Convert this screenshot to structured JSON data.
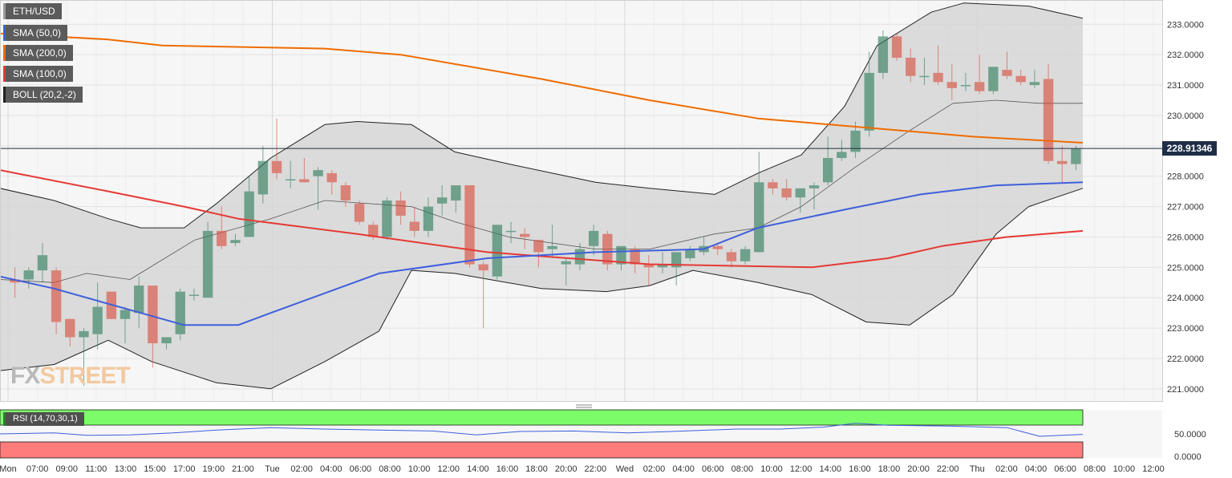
{
  "legend": {
    "symbol": "ETH/USD",
    "sma50": "SMA (50,0)",
    "sma200": "SMA (200,0)",
    "sma100": "SMA (100,0)",
    "boll": "BOLL (20,2,-2)",
    "colors": {
      "symbol": "#999999",
      "sma50": "#3f5fdc",
      "sma200": "#ef6c00",
      "sma100": "#e53935",
      "boll": "#222222"
    }
  },
  "watermark": {
    "part1": "FX",
    "part2": "STREET"
  },
  "last_price": "228.91346",
  "rsi": {
    "label": "RSI (14,70,30,1)",
    "ticks": [
      "50.0000",
      "0.0000"
    ]
  },
  "chart_data": {
    "type": "candlestick",
    "symbol": "ETH/USD",
    "y_ticks": [
      "221.0000",
      "222.0000",
      "223.0000",
      "224.0000",
      "225.0000",
      "226.0000",
      "227.0000",
      "228.0000",
      "229.0000",
      "230.0000",
      "231.0000",
      "232.0000",
      "233.0000"
    ],
    "ylim": [
      220.6,
      233.8
    ],
    "x_ticks": [
      "Mon",
      "07:00",
      "09:00",
      "11:00",
      "13:00",
      "15:00",
      "17:00",
      "19:00",
      "21:00",
      "Tue",
      "02:00",
      "04:00",
      "06:00",
      "08:00",
      "10:00",
      "12:00",
      "14:00",
      "16:00",
      "18:00",
      "20:00",
      "22:00",
      "Wed",
      "02:00",
      "04:00",
      "06:00",
      "08:00",
      "10:00",
      "12:00",
      "14:00",
      "16:00",
      "18:00",
      "20:00",
      "22:00",
      "Thu",
      "02:00",
      "04:00",
      "06:00",
      "08:00",
      "10:00",
      "12:00"
    ],
    "candles": [
      [
        224.6,
        225.0,
        224.0,
        224.5
      ],
      [
        224.6,
        225.0,
        224.3,
        224.9
      ],
      [
        224.9,
        225.8,
        224.5,
        225.4
      ],
      [
        224.9,
        225.0,
        222.8,
        223.2
      ],
      [
        223.3,
        223.3,
        222.4,
        222.7
      ],
      [
        222.7,
        223.0,
        221.1,
        222.9
      ],
      [
        222.8,
        224.5,
        222.3,
        223.7
      ],
      [
        224.2,
        224.2,
        223.3,
        223.3
      ],
      [
        223.3,
        223.7,
        222.5,
        223.6
      ],
      [
        223.5,
        224.7,
        223.0,
        224.4
      ],
      [
        224.4,
        224.4,
        221.7,
        222.5
      ],
      [
        222.5,
        222.7,
        222.3,
        222.7
      ],
      [
        222.8,
        224.3,
        222.6,
        224.2
      ],
      [
        224.1,
        224.3,
        223.9,
        224.1
      ],
      [
        224.0,
        226.5,
        224.0,
        226.2
      ],
      [
        226.2,
        227.0,
        225.6,
        225.7
      ],
      [
        225.8,
        226.1,
        225.7,
        225.9
      ],
      [
        226.0,
        228.0,
        226.0,
        227.5
      ],
      [
        227.4,
        229.0,
        227.1,
        228.5
      ],
      [
        228.5,
        229.9,
        227.9,
        228.1
      ],
      [
        227.9,
        228.5,
        227.6,
        227.9
      ],
      [
        227.9,
        228.6,
        227.8,
        227.8
      ],
      [
        228.0,
        228.3,
        226.9,
        228.2
      ],
      [
        228.1,
        228.2,
        227.4,
        227.8
      ],
      [
        227.7,
        227.8,
        227.0,
        227.2
      ],
      [
        227.1,
        227.2,
        226.4,
        226.5
      ],
      [
        226.4,
        226.5,
        225.9,
        226.0
      ],
      [
        226.0,
        227.3,
        225.9,
        227.2
      ],
      [
        227.2,
        227.5,
        226.4,
        226.7
      ],
      [
        226.5,
        227.0,
        226.0,
        226.2
      ],
      [
        226.2,
        227.3,
        226.0,
        227.0
      ],
      [
        227.1,
        227.7,
        226.7,
        227.3
      ],
      [
        227.2,
        227.6,
        226.8,
        227.7
      ],
      [
        227.7,
        227.7,
        225.0,
        225.1
      ],
      [
        225.1,
        225.2,
        223.0,
        224.9
      ],
      [
        224.7,
        226.4,
        224.6,
        226.4
      ],
      [
        226.2,
        226.5,
        225.8,
        226.2
      ],
      [
        226.1,
        226.3,
        225.6,
        226.0
      ],
      [
        225.9,
        225.9,
        225.0,
        225.5
      ],
      [
        225.6,
        226.4,
        225.3,
        225.7
      ],
      [
        225.1,
        225.3,
        224.4,
        225.2
      ],
      [
        225.1,
        225.8,
        224.9,
        225.6
      ],
      [
        225.7,
        226.4,
        225.4,
        226.2
      ],
      [
        226.1,
        226.2,
        224.9,
        225.1
      ],
      [
        225.1,
        225.6,
        224.9,
        225.7
      ],
      [
        225.6,
        225.7,
        224.8,
        225.1
      ],
      [
        225.1,
        225.4,
        224.4,
        225.0
      ],
      [
        225.0,
        225.5,
        224.8,
        225.1
      ],
      [
        225.0,
        225.5,
        224.4,
        225.5
      ],
      [
        225.3,
        225.7,
        225.2,
        225.6
      ],
      [
        225.5,
        226.0,
        225.4,
        225.7
      ],
      [
        225.7,
        225.8,
        225.4,
        225.6
      ],
      [
        225.5,
        225.6,
        225.0,
        225.2
      ],
      [
        225.2,
        225.7,
        225.1,
        225.6
      ],
      [
        225.5,
        228.8,
        225.5,
        227.8
      ],
      [
        227.8,
        227.9,
        227.4,
        227.6
      ],
      [
        227.6,
        227.9,
        227.2,
        227.3
      ],
      [
        227.3,
        227.6,
        226.8,
        227.6
      ],
      [
        227.6,
        227.8,
        226.9,
        227.7
      ],
      [
        227.8,
        229.3,
        227.7,
        228.6
      ],
      [
        228.6,
        229.2,
        228.5,
        228.8
      ],
      [
        228.8,
        229.8,
        228.6,
        229.5
      ],
      [
        229.5,
        232.1,
        229.3,
        231.4
      ],
      [
        231.4,
        232.8,
        231.2,
        232.6
      ],
      [
        232.6,
        232.7,
        231.8,
        231.9
      ],
      [
        231.9,
        232.2,
        231.1,
        231.3
      ],
      [
        231.3,
        231.9,
        231.0,
        231.3
      ],
      [
        231.4,
        232.3,
        231.0,
        231.1
      ],
      [
        231.1,
        231.7,
        230.5,
        230.9
      ],
      [
        231.0,
        231.4,
        230.8,
        231.0
      ],
      [
        231.1,
        232.0,
        230.7,
        230.8
      ],
      [
        230.8,
        231.6,
        230.7,
        231.6
      ],
      [
        231.5,
        232.1,
        231.2,
        231.3
      ],
      [
        231.3,
        231.5,
        231.0,
        231.1
      ],
      [
        231.0,
        231.5,
        230.9,
        231.1
      ],
      [
        231.2,
        231.7,
        228.4,
        228.5
      ],
      [
        228.5,
        229.0,
        227.8,
        228.4
      ],
      [
        228.4,
        229.0,
        228.2,
        228.9
      ]
    ],
    "sma200": [
      [
        0,
        232.7
      ],
      [
        0.1,
        232.5
      ],
      [
        0.15,
        232.3
      ],
      [
        0.3,
        232.2
      ],
      [
        0.37,
        232.0
      ],
      [
        0.5,
        231.2
      ],
      [
        0.6,
        230.5
      ],
      [
        0.7,
        229.9
      ],
      [
        0.8,
        229.6
      ],
      [
        0.9,
        229.3
      ],
      [
        1.0,
        229.1
      ]
    ],
    "sma100": [
      [
        0,
        228.2
      ],
      [
        0.1,
        227.5
      ],
      [
        0.17,
        227.0
      ],
      [
        0.22,
        226.6
      ],
      [
        0.33,
        226.1
      ],
      [
        0.45,
        225.5
      ],
      [
        0.6,
        225.1
      ],
      [
        0.75,
        225.0
      ],
      [
        0.82,
        225.3
      ],
      [
        0.87,
        225.7
      ],
      [
        0.93,
        226.0
      ],
      [
        1.0,
        226.2
      ]
    ],
    "sma50": [
      [
        0,
        224.7
      ],
      [
        0.05,
        224.3
      ],
      [
        0.1,
        223.8
      ],
      [
        0.17,
        223.1
      ],
      [
        0.22,
        223.1
      ],
      [
        0.25,
        223.5
      ],
      [
        0.35,
        224.8
      ],
      [
        0.45,
        225.3
      ],
      [
        0.55,
        225.5
      ],
      [
        0.65,
        225.6
      ],
      [
        0.7,
        226.3
      ],
      [
        0.78,
        226.9
      ],
      [
        0.85,
        227.4
      ],
      [
        0.92,
        227.7
      ],
      [
        1.0,
        227.8
      ]
    ],
    "boll_upper": [
      [
        0,
        227.6
      ],
      [
        0.05,
        227.2
      ],
      [
        0.1,
        226.6
      ],
      [
        0.13,
        226.3
      ],
      [
        0.17,
        226.3
      ],
      [
        0.2,
        227.1
      ],
      [
        0.25,
        228.6
      ],
      [
        0.3,
        229.7
      ],
      [
        0.33,
        229.8
      ],
      [
        0.38,
        229.7
      ],
      [
        0.42,
        228.8
      ],
      [
        0.47,
        228.4
      ],
      [
        0.55,
        227.8
      ],
      [
        0.6,
        227.6
      ],
      [
        0.66,
        227.4
      ],
      [
        0.7,
        228.1
      ],
      [
        0.74,
        228.7
      ],
      [
        0.78,
        230.3
      ],
      [
        0.81,
        232.3
      ],
      [
        0.86,
        233.4
      ],
      [
        0.89,
        233.7
      ],
      [
        0.95,
        233.6
      ],
      [
        1.0,
        233.2
      ]
    ],
    "boll_middle": [
      [
        0,
        224.6
      ],
      [
        0.05,
        224.5
      ],
      [
        0.08,
        224.8
      ],
      [
        0.12,
        224.6
      ],
      [
        0.18,
        225.9
      ],
      [
        0.25,
        226.6
      ],
      [
        0.3,
        227.2
      ],
      [
        0.38,
        227.0
      ],
      [
        0.42,
        226.5
      ],
      [
        0.47,
        226.0
      ],
      [
        0.55,
        225.6
      ],
      [
        0.6,
        225.6
      ],
      [
        0.66,
        226.1
      ],
      [
        0.7,
        226.3
      ],
      [
        0.74,
        227.0
      ],
      [
        0.79,
        228.3
      ],
      [
        0.84,
        229.5
      ],
      [
        0.88,
        230.4
      ],
      [
        0.92,
        230.5
      ],
      [
        0.96,
        230.4
      ],
      [
        1.0,
        230.4
      ]
    ],
    "boll_lower": [
      [
        0,
        221.6
      ],
      [
        0.05,
        221.8
      ],
      [
        0.1,
        222.6
      ],
      [
        0.14,
        221.9
      ],
      [
        0.2,
        221.2
      ],
      [
        0.25,
        221.0
      ],
      [
        0.3,
        221.9
      ],
      [
        0.35,
        222.9
      ],
      [
        0.38,
        224.9
      ],
      [
        0.42,
        224.8
      ],
      [
        0.5,
        224.3
      ],
      [
        0.56,
        224.2
      ],
      [
        0.6,
        224.4
      ],
      [
        0.64,
        224.9
      ],
      [
        0.7,
        224.5
      ],
      [
        0.75,
        224.1
      ],
      [
        0.8,
        223.2
      ],
      [
        0.84,
        223.1
      ],
      [
        0.88,
        224.1
      ],
      [
        0.92,
        226.1
      ],
      [
        0.95,
        227.0
      ],
      [
        1.0,
        227.6
      ]
    ],
    "rsi_line": [
      [
        0,
        50
      ],
      [
        0.05,
        52
      ],
      [
        0.08,
        47
      ],
      [
        0.12,
        48
      ],
      [
        0.16,
        52
      ],
      [
        0.2,
        58
      ],
      [
        0.25,
        63
      ],
      [
        0.3,
        60
      ],
      [
        0.35,
        58
      ],
      [
        0.4,
        56
      ],
      [
        0.44,
        48
      ],
      [
        0.48,
        55
      ],
      [
        0.53,
        56
      ],
      [
        0.58,
        52
      ],
      [
        0.62,
        55
      ],
      [
        0.68,
        60
      ],
      [
        0.72,
        60
      ],
      [
        0.76,
        64
      ],
      [
        0.79,
        72
      ],
      [
        0.82,
        68
      ],
      [
        0.88,
        66
      ],
      [
        0.93,
        63
      ],
      [
        0.96,
        45
      ],
      [
        1.0,
        49
      ]
    ]
  }
}
